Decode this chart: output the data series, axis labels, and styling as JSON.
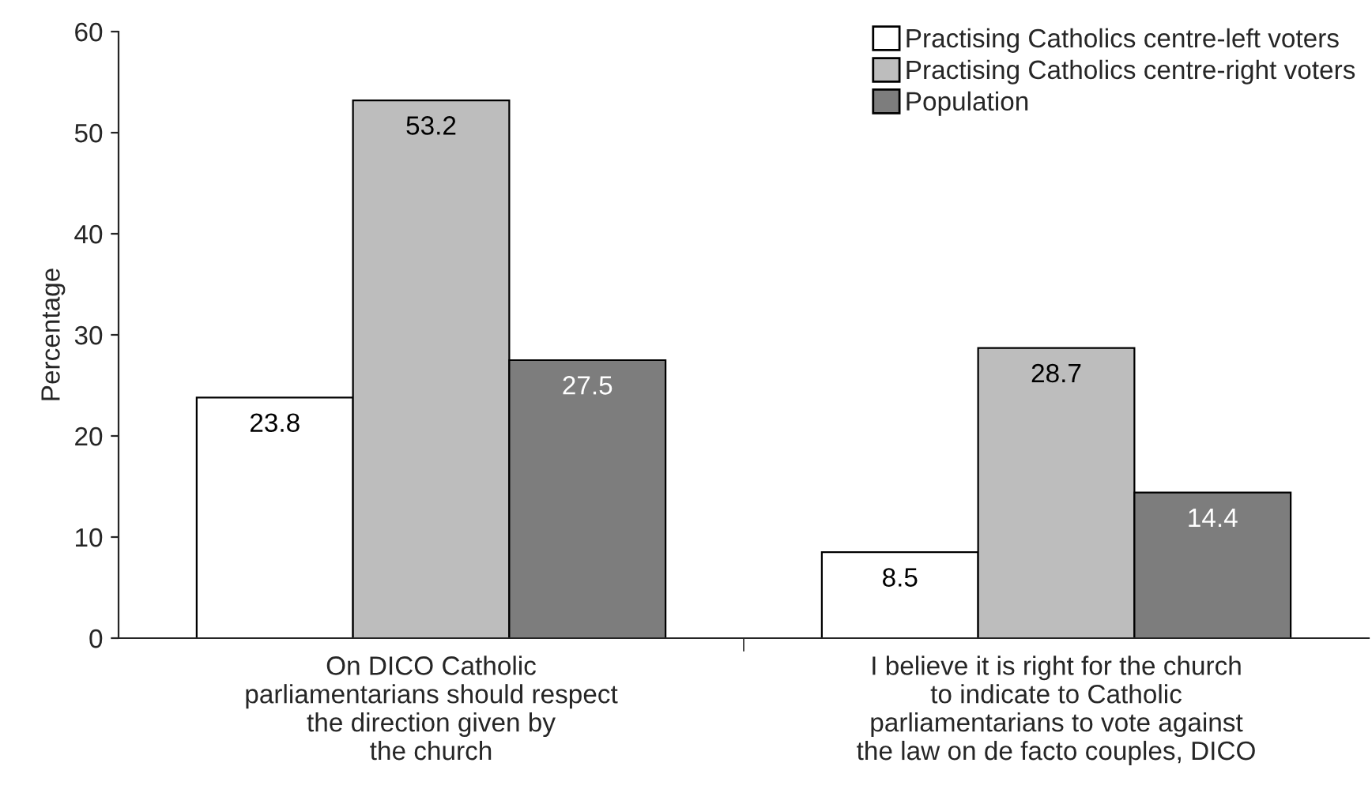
{
  "chart_data": {
    "type": "bar",
    "ylabel": "Percentage",
    "categories": [
      "On DICO Catholic\nparliamentarians should respect\nthe direction given by\nthe church",
      "I believe it is right for the church\nto indicate to Catholic\nparliamentarians to vote against\nthe law on de facto couples, DICO"
    ],
    "series": [
      {
        "name": "Practising Catholics centre-left voters",
        "color": "#ffffff",
        "values": [
          23.8,
          8.5
        ]
      },
      {
        "name": "Practising Catholics centre-right voters",
        "color": "#bdbdbd",
        "values": [
          53.2,
          28.7
        ]
      },
      {
        "name": "Population",
        "color": "#7d7d7d",
        "values": [
          27.5,
          14.4
        ]
      }
    ],
    "ylim": [
      0,
      60
    ],
    "yticks": [
      0,
      10,
      20,
      30,
      40,
      50,
      60
    ],
    "data_labels": true,
    "legend": "top right",
    "grid": false
  }
}
